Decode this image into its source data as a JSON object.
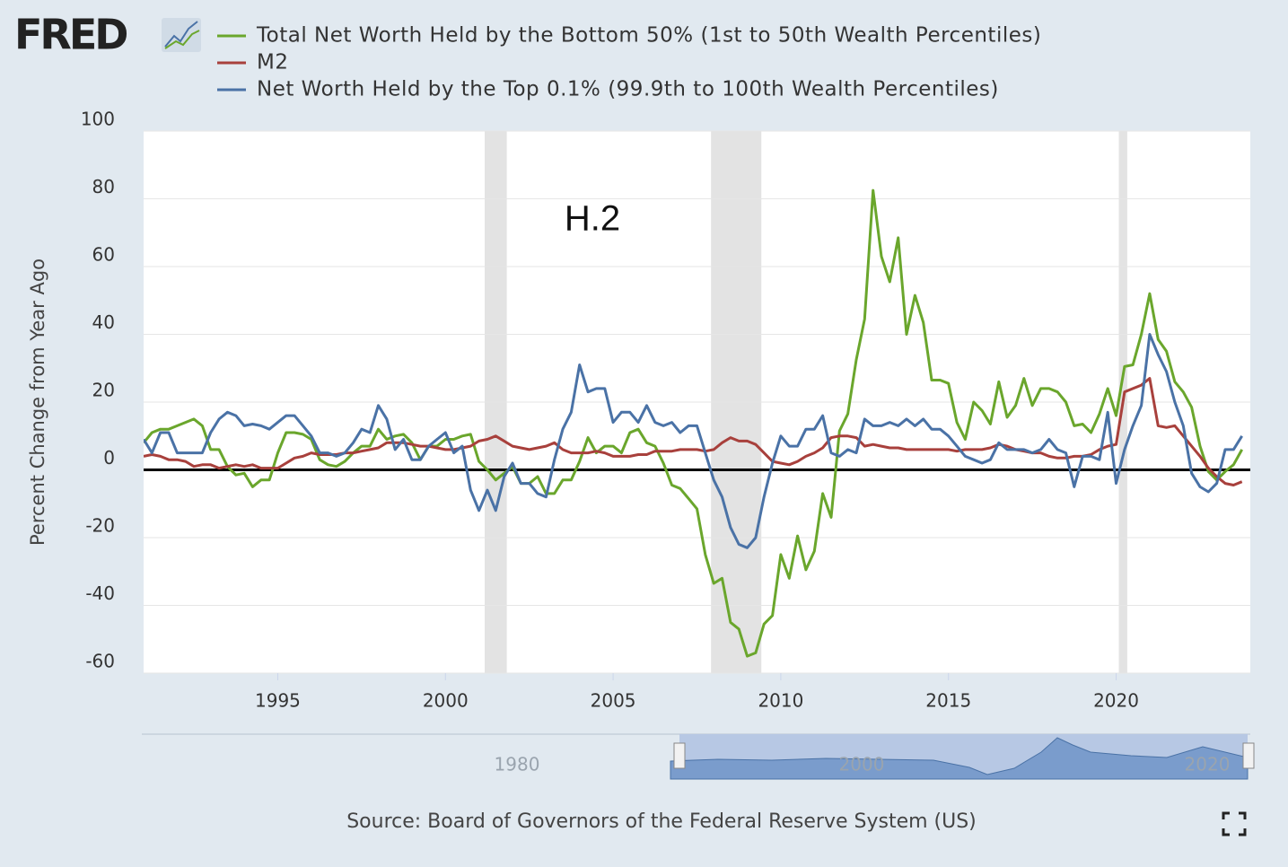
{
  "logo": "FRED",
  "chart_data": {
    "type": "line",
    "annotation": "H.2",
    "y_label": "Percent Change from Year Ago",
    "source": "Source: Board of Governors of the Federal Reserve System (US)",
    "xlim": [
      1991,
      2024
    ],
    "xticks": [
      1995,
      2000,
      2005,
      2010,
      2015,
      2020
    ],
    "ylim": [
      -60,
      100
    ],
    "yticks": [
      -60,
      -40,
      -20,
      0,
      20,
      40,
      60,
      80,
      100
    ],
    "grid": true,
    "recessions": [
      [
        2001.17,
        2001.83
      ],
      [
        2007.92,
        2009.42
      ],
      [
        2020.08,
        2020.33
      ]
    ],
    "x": [
      1991,
      1991.25,
      1991.5,
      1991.75,
      1992,
      1992.25,
      1992.5,
      1992.75,
      1993,
      1993.25,
      1993.5,
      1993.75,
      1994,
      1994.25,
      1994.5,
      1994.75,
      1995,
      1995.25,
      1995.5,
      1995.75,
      1996,
      1996.25,
      1996.5,
      1996.75,
      1997,
      1997.25,
      1997.5,
      1997.75,
      1998,
      1998.25,
      1998.5,
      1998.75,
      1999,
      1999.25,
      1999.5,
      1999.75,
      2000,
      2000.25,
      2000.5,
      2000.75,
      2001,
      2001.25,
      2001.5,
      2001.75,
      2002,
      2002.25,
      2002.5,
      2002.75,
      2003,
      2003.25,
      2003.5,
      2003.75,
      2004,
      2004.25,
      2004.5,
      2004.75,
      2005,
      2005.25,
      2005.5,
      2005.75,
      2006,
      2006.25,
      2006.5,
      2006.75,
      2007,
      2007.25,
      2007.5,
      2007.75,
      2008,
      2008.25,
      2008.5,
      2008.75,
      2009,
      2009.25,
      2009.5,
      2009.75,
      2010,
      2010.25,
      2010.5,
      2010.75,
      2011,
      2011.25,
      2011.5,
      2011.75,
      2012,
      2012.25,
      2012.5,
      2012.75,
      2013,
      2013.25,
      2013.5,
      2013.75,
      2014,
      2014.25,
      2014.5,
      2014.75,
      2015,
      2015.25,
      2015.5,
      2015.75,
      2016,
      2016.25,
      2016.5,
      2016.75,
      2017,
      2017.25,
      2017.5,
      2017.75,
      2018,
      2018.25,
      2018.5,
      2018.75,
      2019,
      2019.25,
      2019.5,
      2019.75,
      2020,
      2020.25,
      2020.5,
      2020.75,
      2021,
      2021.25,
      2021.5,
      2021.75,
      2022,
      2022.25,
      2022.5,
      2022.75,
      2023,
      2023.25,
      2023.5,
      2023.75
    ],
    "series": [
      {
        "name": "Total Net Worth Held by the Bottom 50% (1st to 50th Wealth Percentiles)",
        "color": "#6aa62c",
        "values": [
          8,
          11,
          12,
          12,
          13,
          14,
          15,
          13,
          6,
          6,
          1,
          -1.5,
          -1,
          -5,
          -3,
          -3,
          5,
          11,
          11,
          10.5,
          9,
          3,
          1.5,
          1,
          2.5,
          5,
          7,
          7,
          12,
          9,
          10,
          10.5,
          8,
          3,
          7,
          7,
          9,
          9,
          10,
          10.5,
          2.5,
          0,
          -3,
          -1,
          1,
          -4,
          -4,
          -2,
          -7,
          -7,
          -3,
          -3,
          2.5,
          9.5,
          5,
          7,
          7,
          5,
          11,
          12,
          8,
          7,
          2,
          -4.5,
          -5.5,
          -8.5,
          -11.5,
          -25,
          -33.5,
          -32,
          -45,
          -47,
          -55,
          -54,
          -45.5,
          -43,
          -25,
          -32,
          -19.5,
          -29.5,
          -24,
          -7,
          -14,
          11.5,
          16.5,
          32.5,
          44.5,
          82.5,
          63,
          55.5,
          68.5,
          40,
          51.5,
          43.5,
          26.5,
          26.5,
          25.5,
          14,
          9,
          20,
          17.5,
          13.5,
          26,
          15.5,
          19,
          27,
          19,
          24,
          24,
          23,
          20,
          13,
          13.5,
          11,
          16.5,
          24,
          16,
          30.5,
          31,
          40,
          52,
          38.5,
          35,
          26,
          23,
          18.5,
          7,
          -0.5,
          -3,
          -0.5,
          1.5,
          6
        ]
      },
      {
        "name": "M2",
        "color": "#a8403c",
        "values": [
          4,
          4.5,
          4,
          3,
          3,
          2.5,
          1,
          1.5,
          1.5,
          0.5,
          1,
          1.5,
          1,
          1.5,
          0.5,
          0.5,
          0.5,
          2,
          3.5,
          4,
          5,
          4.5,
          4.5,
          4.5,
          5,
          5,
          5.5,
          6,
          6.5,
          8,
          8,
          8,
          7.5,
          7,
          7,
          6.5,
          6,
          6,
          6.5,
          7,
          8.5,
          9,
          10,
          8.5,
          7,
          6.5,
          6,
          6.5,
          7,
          8,
          6,
          5,
          5,
          5,
          5.5,
          5,
          4,
          4,
          4,
          4.5,
          4.5,
          5.5,
          5.5,
          5.5,
          6,
          6,
          6,
          5.5,
          6,
          8,
          9.5,
          8.5,
          8.5,
          7.5,
          5,
          2.5,
          2,
          1.5,
          2.5,
          4,
          5,
          6.5,
          9.5,
          10,
          10,
          9.5,
          7,
          7.5,
          7,
          6.5,
          6.5,
          6,
          6,
          6,
          6,
          6,
          6,
          5.5,
          6,
          6,
          6,
          6.5,
          7.5,
          7,
          6,
          5.5,
          5,
          5,
          4,
          3.5,
          3.5,
          4,
          4,
          4.5,
          6,
          7,
          7.5,
          23,
          24,
          25,
          27,
          13,
          12.5,
          13,
          10,
          7,
          4,
          0.5,
          -2,
          -4,
          -4.5,
          -3.5
        ]
      },
      {
        "name": "Net Worth Held by the Top 0.1% (99.9th to 100th Wealth Percentiles)",
        "color": "#4a72a6",
        "values": [
          9,
          5,
          11,
          11,
          5,
          5,
          5,
          5,
          11,
          15,
          17,
          16,
          13,
          13.5,
          13,
          12,
          14,
          16,
          16,
          13,
          10,
          5,
          5,
          4,
          5,
          8,
          12,
          11,
          19,
          15,
          6,
          9,
          3,
          3,
          7,
          9,
          11,
          5,
          7,
          -6,
          -12,
          -6,
          -12,
          -2,
          2,
          -4,
          -4,
          -7,
          -8,
          3,
          12,
          17,
          31,
          23,
          24,
          24,
          14,
          17,
          17,
          14,
          19,
          14,
          13,
          14,
          11,
          13,
          13,
          5,
          -3,
          -8,
          -17,
          -22,
          -23,
          -20,
          -8,
          2,
          10,
          7,
          7,
          12,
          12,
          16,
          5,
          4,
          6,
          5,
          15,
          13,
          13,
          14,
          13,
          15,
          13,
          15,
          12,
          12,
          10,
          7,
          4,
          3,
          2,
          3,
          8,
          6,
          6,
          6,
          5,
          6,
          9,
          6,
          5,
          -5,
          4,
          4,
          3,
          17,
          -4,
          6,
          13,
          19,
          40,
          34,
          29,
          20,
          13,
          -1,
          -5,
          -6.5,
          -4,
          6,
          6,
          10
        ]
      }
    ]
  },
  "navigator": {
    "labels": [
      "1980",
      "2000",
      "2020"
    ]
  }
}
